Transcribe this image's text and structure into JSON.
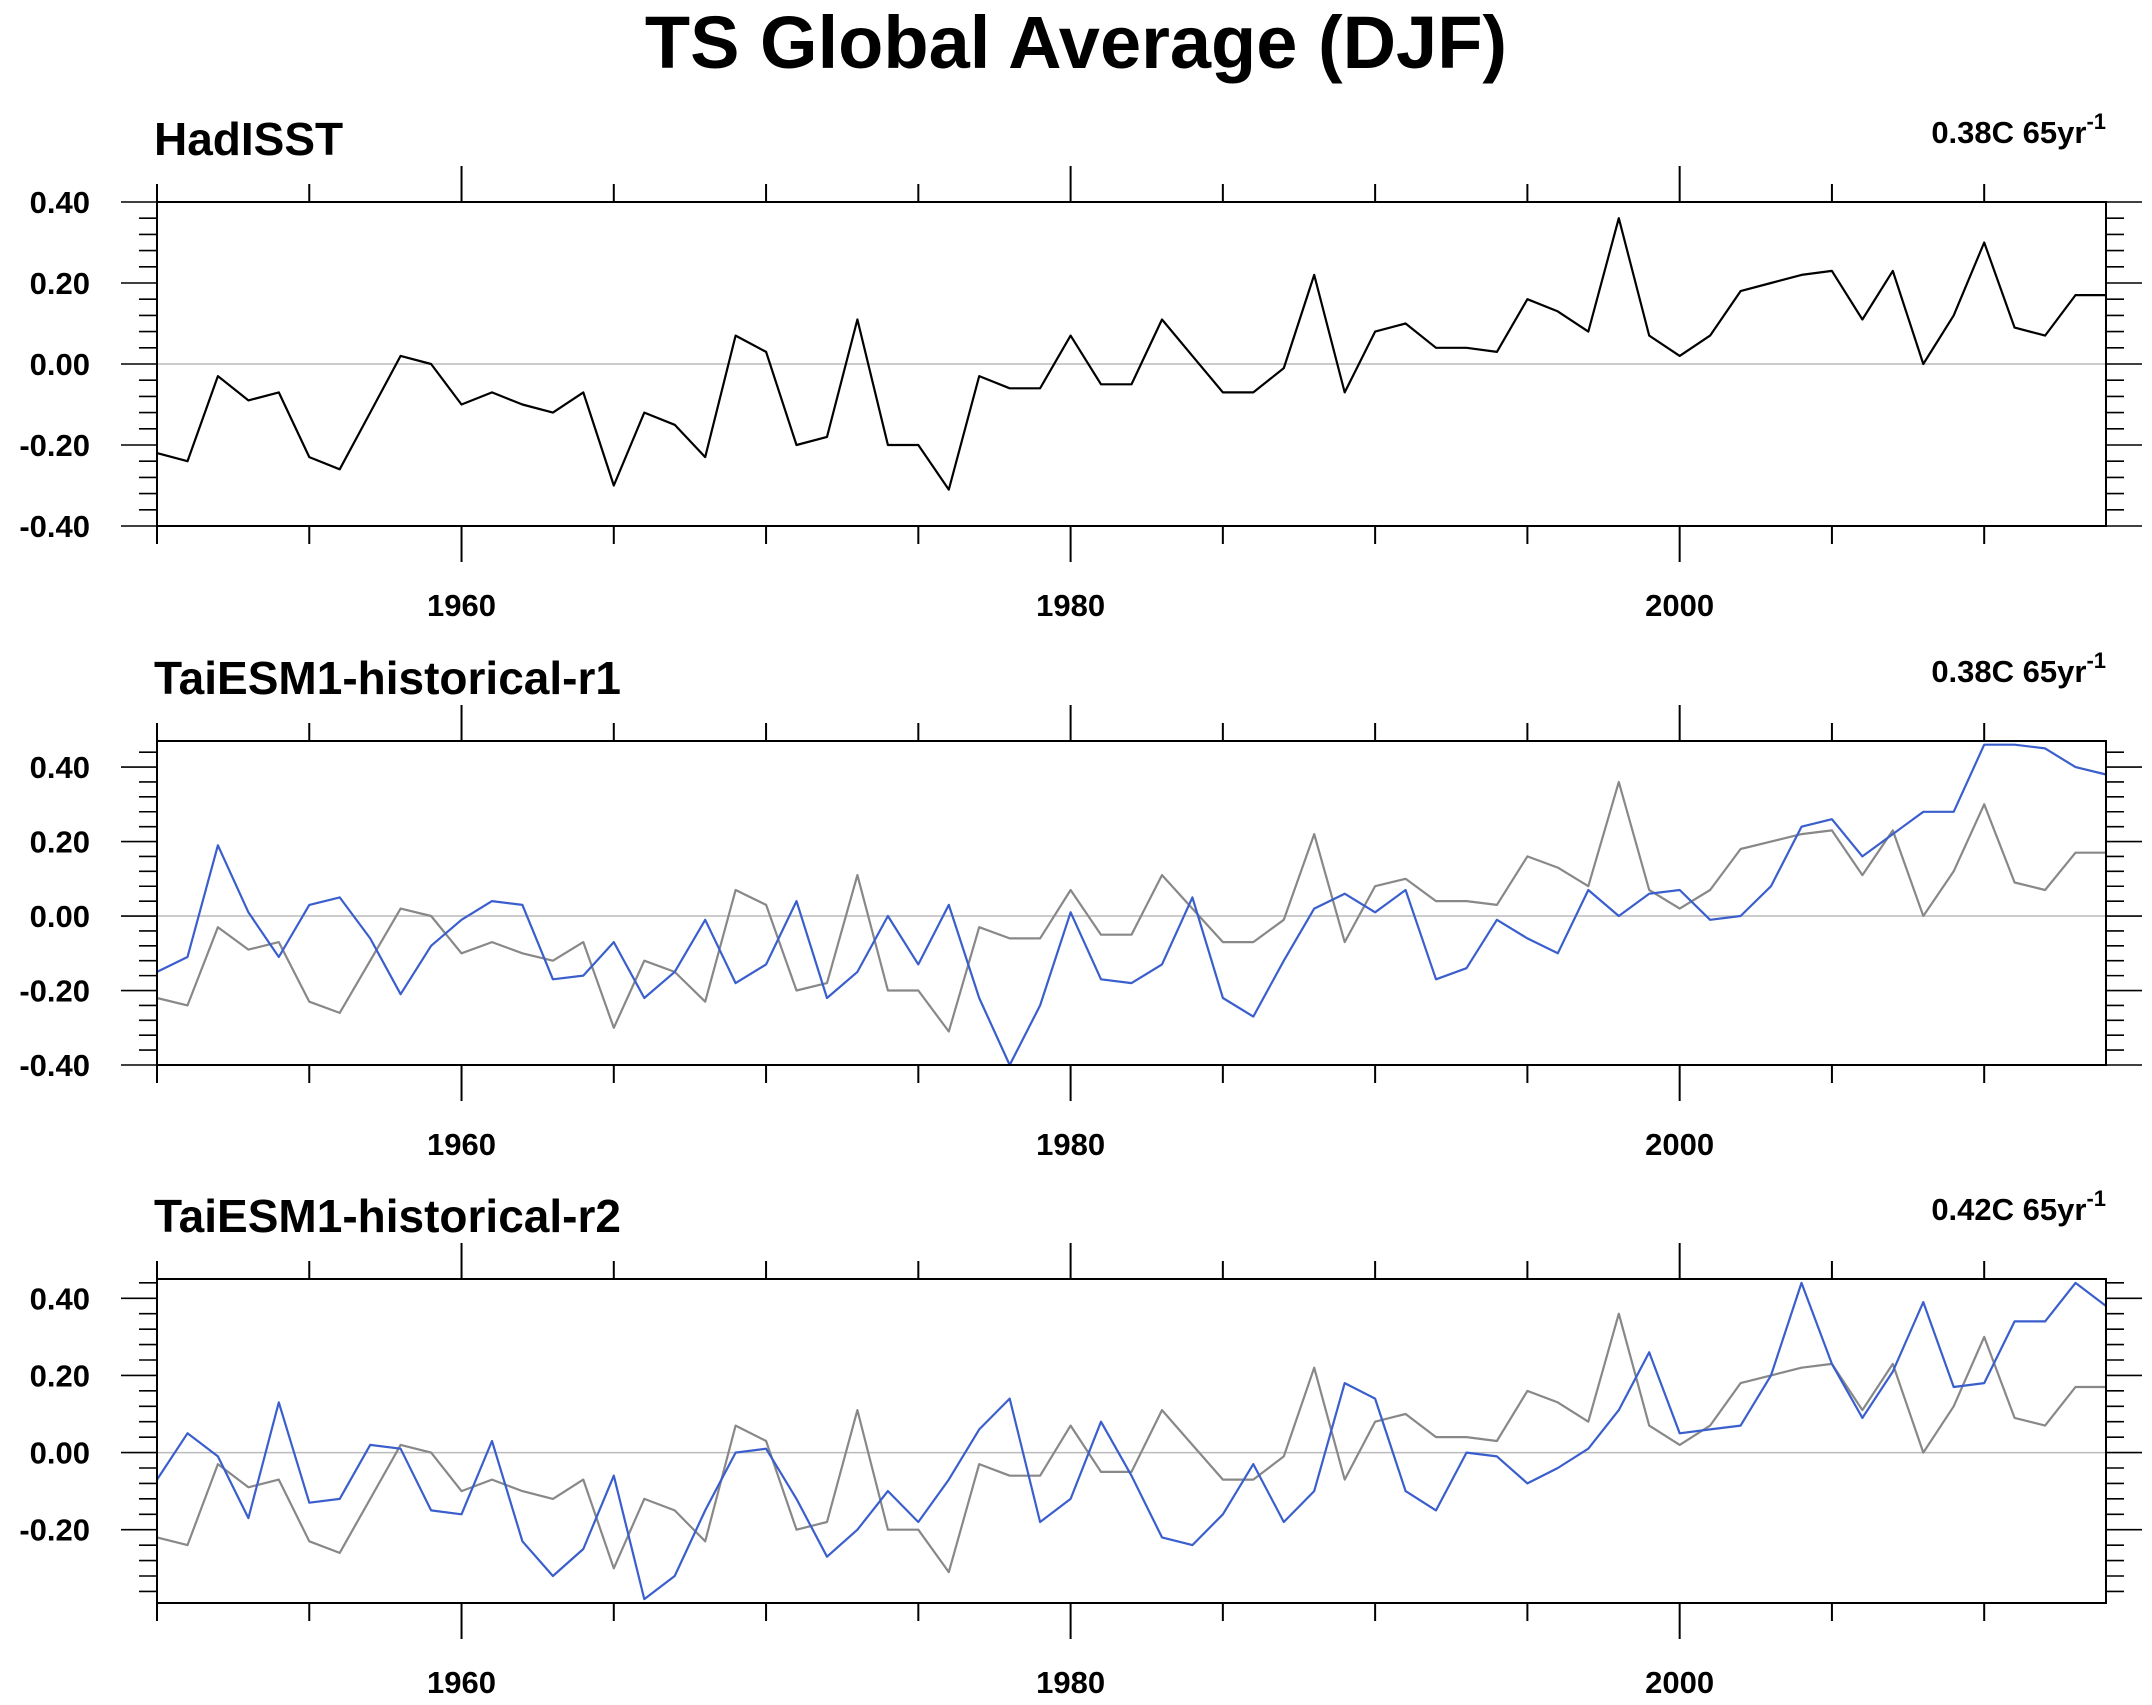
{
  "title": "TS Global Average (DJF)",
  "colors": {
    "obs": "#000000",
    "obs_ref": "#888888",
    "model": "#3a5fcd",
    "zero_line": "#bbbbbb"
  },
  "chart_data": [
    {
      "type": "line",
      "title": "HadISST",
      "trend_label": "0.38C 65yr",
      "trend_sup": "-1",
      "xlim": [
        1950,
        2014
      ],
      "ylim": [
        -0.4,
        0.4
      ],
      "xticks": [
        "1960",
        "1980",
        "2000"
      ],
      "yticks": [
        "0.40",
        "0.20",
        "0.00",
        "-0.20",
        "-0.40"
      ],
      "series": [
        {
          "role": "obs",
          "values": [
            -0.22,
            -0.24,
            -0.03,
            -0.09,
            -0.07,
            -0.23,
            -0.26,
            -0.12,
            0.02,
            0.0,
            -0.1,
            -0.07,
            -0.1,
            -0.12,
            -0.07,
            -0.3,
            -0.12,
            -0.15,
            -0.23,
            0.07,
            0.03,
            -0.2,
            -0.18,
            0.11,
            -0.2,
            -0.2,
            -0.31,
            -0.03,
            -0.06,
            -0.06,
            0.07,
            -0.05,
            -0.05,
            0.11,
            0.02,
            -0.07,
            -0.07,
            -0.01,
            0.22,
            -0.07,
            0.08,
            0.1,
            0.04,
            0.04,
            0.03,
            0.16,
            0.13,
            0.08,
            0.36,
            0.07,
            0.02,
            0.07,
            0.18,
            0.2,
            0.22,
            0.23,
            0.11,
            0.23,
            0.0,
            0.12,
            0.3,
            0.09,
            0.07,
            0.17,
            0.17
          ]
        }
      ]
    },
    {
      "type": "line",
      "title": "TaiESM1-historical-r1",
      "trend_label": "0.38C 65yr",
      "trend_sup": "-1",
      "xlim": [
        1950,
        2014
      ],
      "ylim": [
        -0.4,
        0.47
      ],
      "xticks": [
        "1960",
        "1980",
        "2000"
      ],
      "yticks": [
        "0.40",
        "0.20",
        "0.00",
        "-0.20",
        "-0.40"
      ],
      "series": [
        {
          "role": "obs_ref",
          "values": [
            -0.22,
            -0.24,
            -0.03,
            -0.09,
            -0.07,
            -0.23,
            -0.26,
            -0.12,
            0.02,
            0.0,
            -0.1,
            -0.07,
            -0.1,
            -0.12,
            -0.07,
            -0.3,
            -0.12,
            -0.15,
            -0.23,
            0.07,
            0.03,
            -0.2,
            -0.18,
            0.11,
            -0.2,
            -0.2,
            -0.31,
            -0.03,
            -0.06,
            -0.06,
            0.07,
            -0.05,
            -0.05,
            0.11,
            0.02,
            -0.07,
            -0.07,
            -0.01,
            0.22,
            -0.07,
            0.08,
            0.1,
            0.04,
            0.04,
            0.03,
            0.16,
            0.13,
            0.08,
            0.36,
            0.07,
            0.02,
            0.07,
            0.18,
            0.2,
            0.22,
            0.23,
            0.11,
            0.23,
            0.0,
            0.12,
            0.3,
            0.09,
            0.07,
            0.17,
            0.17
          ]
        },
        {
          "role": "model",
          "values": [
            -0.15,
            -0.11,
            0.19,
            0.01,
            -0.11,
            0.03,
            0.05,
            -0.06,
            -0.21,
            -0.08,
            -0.01,
            0.04,
            0.03,
            -0.17,
            -0.16,
            -0.07,
            -0.22,
            -0.15,
            -0.01,
            -0.18,
            -0.13,
            0.04,
            -0.22,
            -0.15,
            0.0,
            -0.13,
            0.03,
            -0.22,
            -0.4,
            -0.24,
            0.01,
            -0.17,
            -0.18,
            -0.13,
            0.05,
            -0.22,
            -0.27,
            -0.12,
            0.02,
            0.06,
            0.01,
            0.07,
            -0.17,
            -0.14,
            -0.01,
            -0.06,
            -0.1,
            0.07,
            0.0,
            0.06,
            0.07,
            -0.01,
            0.0,
            0.08,
            0.24,
            0.26,
            0.16,
            0.22,
            0.28,
            0.28,
            0.46,
            0.46,
            0.45,
            0.4,
            0.38
          ]
        }
      ]
    },
    {
      "type": "line",
      "title": "TaiESM1-historical-r2",
      "trend_label": "0.42C 65yr",
      "trend_sup": "-1",
      "xlim": [
        1950,
        2014
      ],
      "ylim": [
        -0.39,
        0.45
      ],
      "xticks": [
        "1960",
        "1980",
        "2000"
      ],
      "yticks": [
        "0.40",
        "0.20",
        "0.00",
        "-0.20"
      ],
      "series": [
        {
          "role": "obs_ref",
          "values": [
            -0.22,
            -0.24,
            -0.03,
            -0.09,
            -0.07,
            -0.23,
            -0.26,
            -0.12,
            0.02,
            0.0,
            -0.1,
            -0.07,
            -0.1,
            -0.12,
            -0.07,
            -0.3,
            -0.12,
            -0.15,
            -0.23,
            0.07,
            0.03,
            -0.2,
            -0.18,
            0.11,
            -0.2,
            -0.2,
            -0.31,
            -0.03,
            -0.06,
            -0.06,
            0.07,
            -0.05,
            -0.05,
            0.11,
            0.02,
            -0.07,
            -0.07,
            -0.01,
            0.22,
            -0.07,
            0.08,
            0.1,
            0.04,
            0.04,
            0.03,
            0.16,
            0.13,
            0.08,
            0.36,
            0.07,
            0.02,
            0.07,
            0.18,
            0.2,
            0.22,
            0.23,
            0.11,
            0.23,
            0.0,
            0.12,
            0.3,
            0.09,
            0.07,
            0.17,
            0.17
          ]
        },
        {
          "role": "model",
          "values": [
            -0.07,
            0.05,
            -0.01,
            -0.17,
            0.13,
            -0.13,
            -0.12,
            0.02,
            0.01,
            -0.15,
            -0.16,
            0.03,
            -0.23,
            -0.32,
            -0.25,
            -0.06,
            -0.38,
            -0.32,
            -0.15,
            0.0,
            0.01,
            -0.12,
            -0.27,
            -0.2,
            -0.1,
            -0.18,
            -0.07,
            0.06,
            0.14,
            -0.18,
            -0.12,
            0.08,
            -0.06,
            -0.22,
            -0.24,
            -0.16,
            -0.03,
            -0.18,
            -0.1,
            0.18,
            0.14,
            -0.1,
            -0.15,
            0.0,
            -0.01,
            -0.08,
            -0.04,
            0.01,
            0.11,
            0.26,
            0.05,
            0.06,
            0.07,
            0.2,
            0.44,
            0.23,
            0.09,
            0.21,
            0.39,
            0.17,
            0.18,
            0.34,
            0.34,
            0.44,
            0.38
          ]
        }
      ]
    }
  ]
}
